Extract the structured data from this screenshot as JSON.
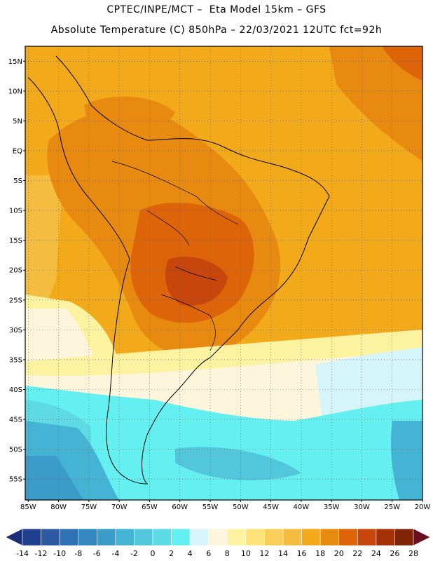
{
  "header": {
    "line1": "CPTEC/INPE/MCT –  Eta Model 15km – GFS",
    "line2": "Absolute Temperature (C) 850hPa – 22/03/2021 12UTC fct=92h"
  },
  "map": {
    "lat_labels": [
      "15N",
      "10N",
      "5N",
      "EQ",
      "5S",
      "10S",
      "15S",
      "20S",
      "25S",
      "30S",
      "35S",
      "40S",
      "45S",
      "50S",
      "55S"
    ],
    "lat_values": [
      15,
      10,
      5,
      0,
      -5,
      -10,
      -15,
      -20,
      -25,
      -30,
      -35,
      -40,
      -45,
      -50,
      -55
    ],
    "lon_labels": [
      "85W",
      "80W",
      "75W",
      "70W",
      "65W",
      "60W",
      "55W",
      "50W",
      "45W",
      "40W",
      "35W",
      "30W",
      "25W",
      "20W"
    ],
    "lon_values": [
      -85,
      -80,
      -75,
      -70,
      -65,
      -60,
      -55,
      -50,
      -45,
      -40,
      -35,
      -30,
      -25,
      -20
    ],
    "lon_range": [
      -85.5,
      -20
    ],
    "lat_range": [
      -58.5,
      17.5
    ]
  },
  "colorbar": {
    "labels": [
      "-14",
      "-12",
      "-10",
      "-8",
      "-6",
      "-4",
      "-2",
      "0",
      "2",
      "4",
      "6",
      "8",
      "10",
      "12",
      "14",
      "16",
      "18",
      "20",
      "22",
      "24",
      "26",
      "28"
    ],
    "colors": [
      "#1f3f8f",
      "#2b5aa3",
      "#2f72b4",
      "#3487c0",
      "#3b9cc9",
      "#45b3d4",
      "#52c7dc",
      "#5fdbe6",
      "#64f0f0",
      "#d6f5fa",
      "#fdf6dc",
      "#fdf2a0",
      "#fde27a",
      "#f9cf5a",
      "#f4bd3f",
      "#f2a91a",
      "#e88a10",
      "#de640a",
      "#c8450b",
      "#a63108",
      "#7e2407"
    ],
    "under_color": "#1a2f78",
    "over_color": "#6b0f1e"
  }
}
